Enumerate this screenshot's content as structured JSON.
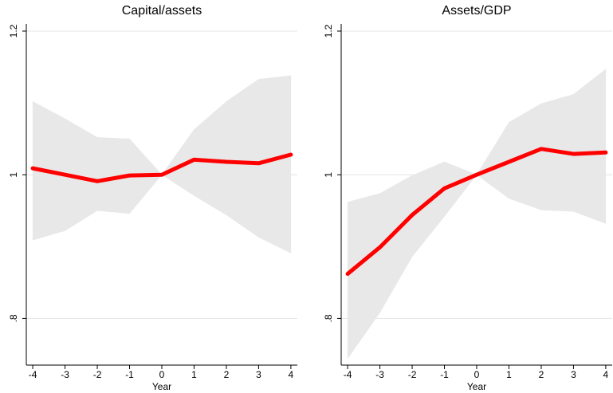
{
  "chart_data": [
    {
      "type": "line",
      "title": "Capital/assets",
      "xlabel": "Year",
      "x": [
        -4,
        -3,
        -2,
        -1,
        0,
        1,
        2,
        3,
        4
      ],
      "values": [
        1.009,
        1.0,
        0.991,
        0.999,
        1.0,
        1.021,
        1.018,
        1.016,
        1.028
      ],
      "color": "#ff0000",
      "band": {
        "upper": [
          1.102,
          1.078,
          1.052,
          1.05,
          1.0,
          1.063,
          1.102,
          1.133,
          1.138
        ],
        "lower": [
          0.909,
          0.922,
          0.95,
          0.946,
          1.0,
          0.971,
          0.944,
          0.913,
          0.891
        ],
        "color": "#e8e8e8"
      },
      "xlim": [
        -4.2,
        4.2
      ],
      "xticks": [
        -4,
        -3,
        -2,
        -1,
        0,
        1,
        2,
        3,
        4
      ],
      "ylim": [
        0.735,
        1.21
      ],
      "yticks": [
        {
          "value": 0.8,
          "label": ".8"
        },
        1,
        {
          "value": 1.2,
          "label": "1.2"
        }
      ],
      "grid": true
    },
    {
      "type": "line",
      "title": "Assets/GDP",
      "xlabel": "Year",
      "x": [
        -4,
        -3,
        -2,
        -1,
        0,
        1,
        2,
        3,
        4
      ],
      "values": [
        0.862,
        0.899,
        0.944,
        0.981,
        1.0,
        1.018,
        1.036,
        1.029,
        1.031
      ],
      "color": "#ff0000",
      "band": {
        "upper": [
          0.962,
          0.974,
          0.999,
          1.018,
          1.0,
          1.073,
          1.099,
          1.112,
          1.147
        ],
        "lower": [
          0.744,
          0.808,
          0.886,
          0.942,
          1.0,
          0.967,
          0.951,
          0.949,
          0.932
        ],
        "color": "#e8e8e8"
      },
      "xlim": [
        -4.2,
        4.2
      ],
      "xticks": [
        -4,
        -3,
        -2,
        -1,
        0,
        1,
        2,
        3,
        4
      ],
      "ylim": [
        0.735,
        1.21
      ],
      "yticks": [
        {
          "value": 0.8,
          "label": ".8"
        },
        1,
        {
          "value": 1.2,
          "label": "1.2"
        }
      ],
      "grid": true
    }
  ]
}
